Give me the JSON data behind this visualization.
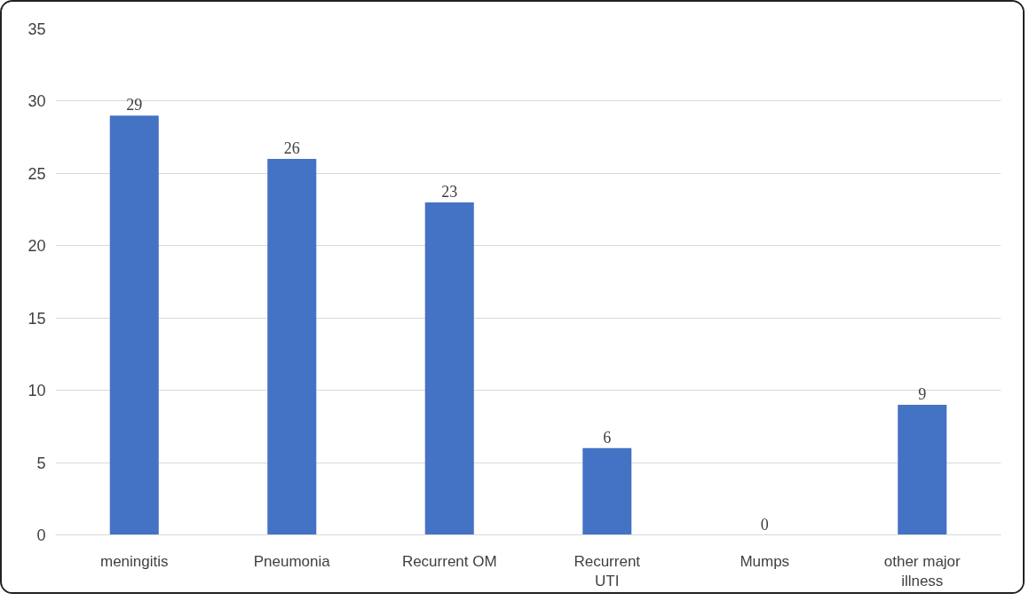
{
  "chart_data": {
    "type": "bar",
    "categories": [
      "meningitis",
      "Pneumonia",
      "Recurrent OM",
      "Recurrent UTI",
      "Mumps",
      "other major illness"
    ],
    "values": [
      29,
      26,
      23,
      6,
      0,
      9
    ],
    "color": "#4472c4",
    "ylim": [
      0,
      35
    ],
    "yticks": [
      0,
      5,
      10,
      15,
      20,
      25,
      30,
      35
    ],
    "grid": "y",
    "data_labels": true
  }
}
